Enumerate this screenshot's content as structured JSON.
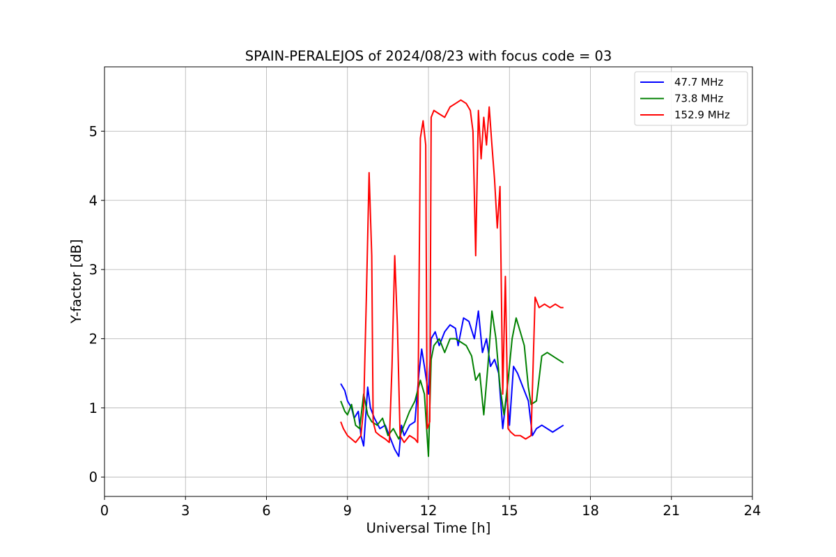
{
  "chart_data": {
    "type": "line",
    "title": "SPAIN-PERALEJOS of 2024/08/23 with focus code = 03",
    "xlabel": "Universal Time [h]",
    "ylabel": "Y-factor [dB]",
    "xlim": [
      0,
      24
    ],
    "ylim": [
      -0.28,
      5.93
    ],
    "xticks": [
      0,
      3,
      6,
      9,
      12,
      15,
      18,
      21,
      24
    ],
    "yticks": [
      0,
      1,
      2,
      3,
      4,
      5
    ],
    "grid": true,
    "legend_position": "top-right",
    "series": [
      {
        "name": "  47.7 MHz",
        "color": "#0000ff",
        "x": [
          8.75,
          8.9,
          9.0,
          9.15,
          9.25,
          9.4,
          9.5,
          9.6,
          9.75,
          9.85,
          10.0,
          10.2,
          10.4,
          10.6,
          10.75,
          10.9,
          11.0,
          11.1,
          11.3,
          11.5,
          11.65,
          11.75,
          11.85,
          12.0,
          12.1,
          12.25,
          12.4,
          12.6,
          12.8,
          13.0,
          13.1,
          13.3,
          13.5,
          13.7,
          13.85,
          14.0,
          14.15,
          14.3,
          14.45,
          14.6,
          14.75,
          14.9,
          15.0,
          15.15,
          15.3,
          15.5,
          15.7,
          15.85,
          16.0,
          16.2,
          16.4,
          16.6,
          16.8,
          17.0
        ],
        "y": [
          1.35,
          1.25,
          1.1,
          1.0,
          0.85,
          0.95,
          0.6,
          0.45,
          1.3,
          1.0,
          0.85,
          0.7,
          0.75,
          0.55,
          0.4,
          0.3,
          0.75,
          0.6,
          0.75,
          0.8,
          1.5,
          1.85,
          1.6,
          1.2,
          2.0,
          2.1,
          1.9,
          2.1,
          2.2,
          2.15,
          1.9,
          2.3,
          2.25,
          2.0,
          2.4,
          1.8,
          2.0,
          1.6,
          1.7,
          1.5,
          0.7,
          1.2,
          0.75,
          1.6,
          1.5,
          1.3,
          1.1,
          0.6,
          0.7,
          0.75,
          0.7,
          0.65,
          0.7,
          0.75
        ]
      },
      {
        "name": "  73.8 MHz",
        "color": "#008000",
        "x": [
          8.75,
          8.9,
          9.0,
          9.15,
          9.3,
          9.45,
          9.6,
          9.75,
          9.9,
          10.1,
          10.3,
          10.5,
          10.7,
          10.9,
          11.1,
          11.3,
          11.5,
          11.7,
          11.85,
          12.0,
          12.1,
          12.2,
          12.4,
          12.6,
          12.8,
          13.0,
          13.2,
          13.4,
          13.6,
          13.75,
          13.9,
          14.05,
          14.2,
          14.35,
          14.5,
          14.65,
          14.8,
          14.95,
          15.1,
          15.25,
          15.4,
          15.55,
          15.7,
          15.8,
          16.0,
          16.2,
          16.4,
          16.6,
          16.8,
          17.0
        ],
        "y": [
          1.1,
          0.95,
          0.9,
          1.05,
          0.75,
          0.7,
          1.2,
          0.9,
          0.8,
          0.75,
          0.85,
          0.6,
          0.7,
          0.55,
          0.75,
          0.95,
          1.1,
          1.4,
          1.2,
          0.3,
          1.7,
          1.9,
          2.0,
          1.8,
          2.0,
          2.0,
          1.95,
          1.9,
          1.75,
          1.4,
          1.5,
          0.9,
          1.6,
          2.4,
          2.0,
          1.3,
          0.9,
          1.4,
          2.0,
          2.3,
          2.1,
          1.9,
          1.3,
          1.05,
          1.1,
          1.75,
          1.8,
          1.75,
          1.7,
          1.65
        ]
      },
      {
        "name": "  152.9 MHz",
        "color": "#ff0000",
        "x": [
          8.75,
          8.85,
          9.0,
          9.15,
          9.3,
          9.5,
          9.6,
          9.7,
          9.8,
          9.9,
          9.95,
          10.05,
          10.2,
          10.4,
          10.55,
          10.65,
          10.75,
          10.85,
          10.95,
          11.1,
          11.3,
          11.5,
          11.6,
          11.7,
          11.8,
          11.9,
          11.95,
          12.05,
          12.1,
          12.2,
          12.4,
          12.6,
          12.8,
          13.0,
          13.2,
          13.4,
          13.55,
          13.65,
          13.75,
          13.85,
          13.95,
          14.05,
          14.15,
          14.25,
          14.35,
          14.45,
          14.55,
          14.65,
          14.75,
          14.85,
          14.95,
          15.05,
          15.2,
          15.4,
          15.6,
          15.8,
          15.95,
          16.1,
          16.3,
          16.5,
          16.7,
          16.9,
          17.0
        ],
        "y": [
          0.8,
          0.7,
          0.6,
          0.55,
          0.5,
          0.6,
          1.0,
          2.6,
          4.4,
          3.2,
          0.8,
          0.65,
          0.6,
          0.55,
          0.5,
          1.6,
          3.2,
          2.2,
          0.6,
          0.5,
          0.6,
          0.55,
          0.5,
          4.9,
          5.15,
          4.8,
          0.7,
          0.8,
          5.2,
          5.3,
          5.25,
          5.2,
          5.35,
          5.4,
          5.45,
          5.4,
          5.3,
          5.0,
          3.2,
          5.3,
          4.6,
          5.2,
          4.8,
          5.35,
          4.8,
          4.3,
          3.6,
          4.2,
          1.2,
          2.9,
          0.7,
          0.65,
          0.6,
          0.6,
          0.55,
          0.6,
          2.6,
          2.45,
          2.5,
          2.45,
          2.5,
          2.45,
          2.45
        ]
      }
    ]
  }
}
